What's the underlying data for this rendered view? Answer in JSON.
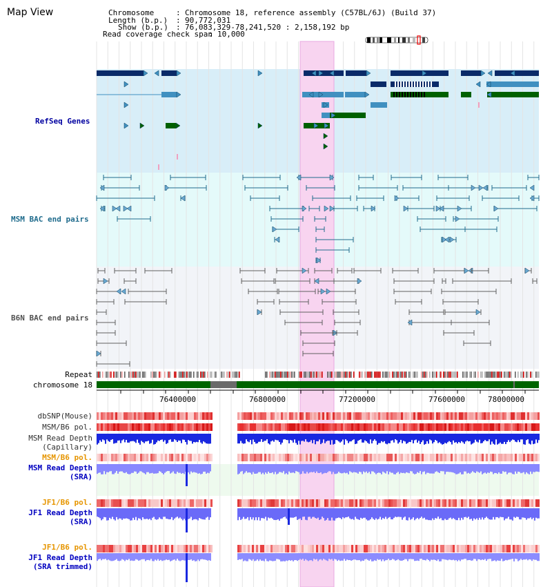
{
  "header": {
    "title": "Map View",
    "chromosome_label": "Chromosome",
    "chromosome_value": "Chromosome 18, reference assembly (C57BL/6J) (Build 37)",
    "length_label": "Length (b.p.)",
    "length_value": "90,772,031",
    "show_label": "Show (b.p.)",
    "show_value": "76,083,329-78,241,520 : 2,158,192 bp",
    "coverage_label": "Read coverage check span",
    "coverage_value": "10,000"
  },
  "tracks": {
    "refseq": "RefSeq Genes",
    "msm_bac": "MSM BAC end pairs",
    "b6n_bac": "B6N BAC end pairs",
    "repeat": "Repeat",
    "chromosome": "chromosome 18",
    "dbsnp": "dbSNP(Mouse)",
    "msm_b6_pol_1": "MSM/B6 pol.",
    "msm_read_depth_cap_1": "MSM Read Depth",
    "msm_read_depth_cap_2": "(Capillary)",
    "msm_b6_pol_2": "MSM/B6 pol.",
    "msm_read_depth_sra_1": "MSM Read Depth",
    "msm_read_depth_sra_2": "(SRA)",
    "jf1_b6_pol_1": "JF1/B6 pol.",
    "jf1_read_depth_1": "JF1 Read Depth",
    "jf1_read_depth_2": "(SRA)",
    "jf1_b6_pol_2": "JF1/B6 pol.",
    "jf1_read_depth_trim_1": "JF1 Read Depth",
    "jf1_read_depth_trim_2": "(SRA trimmed)"
  },
  "axis": {
    "ticks": [
      "76400000",
      "76800000",
      "77200000",
      "77600000",
      "78000000"
    ]
  },
  "colors": {
    "refseq_bg": "#d8eef8",
    "msm_bg": "#e4fafa",
    "b6n_bg": "#f2f4f8",
    "highlight": "#f8d4f0",
    "gene_dark": "#0a2a68",
    "gene_mid": "#4090c0",
    "gene_green": "#006000",
    "msm_line": "#1f6b8c",
    "b6n_line": "#606060",
    "chrom_green": "#006400",
    "depth_blue": "#1a28e0",
    "depth_light": "#8888ff"
  }
}
